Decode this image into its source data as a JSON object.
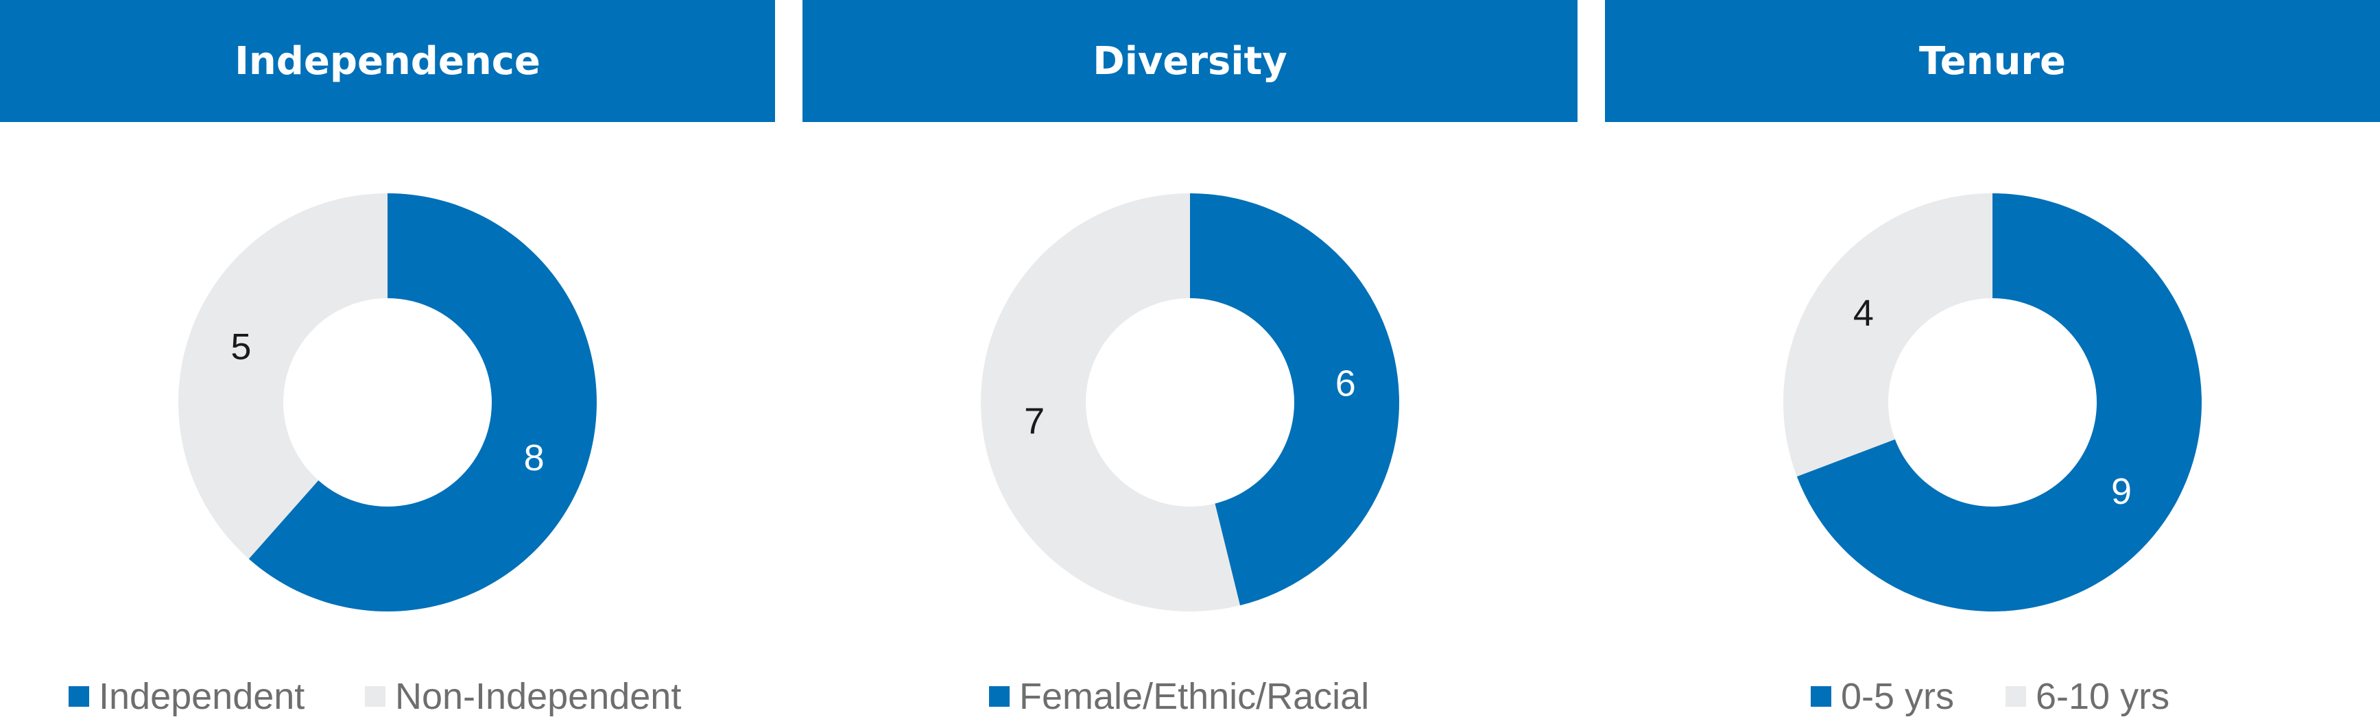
{
  "colors": {
    "primary": "#0070b8",
    "secondary": "#e9eaec",
    "header_text": "#ffffff",
    "legend_text": "#6e6e6e"
  },
  "chart_data": [
    {
      "type": "pie",
      "title": "Independence",
      "categories": [
        "Independent",
        "Non-Independent"
      ],
      "values": [
        8,
        5
      ],
      "legend": [
        {
          "label": "Independent",
          "color": "#0070b8"
        },
        {
          "label": "Non-Independent",
          "color": "#e9eaec"
        }
      ],
      "legend_position": "bottom"
    },
    {
      "type": "pie",
      "title": "Diversity",
      "categories": [
        "Female/Ethnic/Racial",
        ""
      ],
      "values": [
        6,
        7
      ],
      "legend": [
        {
          "label": "Female/Ethnic/Racial",
          "color": "#0070b8"
        }
      ],
      "legend_position": "bottom"
    },
    {
      "type": "pie",
      "title": "Tenure",
      "categories": [
        "0-5 yrs",
        "6-10 yrs"
      ],
      "values": [
        9,
        4
      ],
      "legend": [
        {
          "label": "0-5 yrs",
          "color": "#0070b8"
        },
        {
          "label": "6-10 yrs",
          "color": "#e9eaec"
        }
      ],
      "legend_position": "bottom"
    }
  ]
}
